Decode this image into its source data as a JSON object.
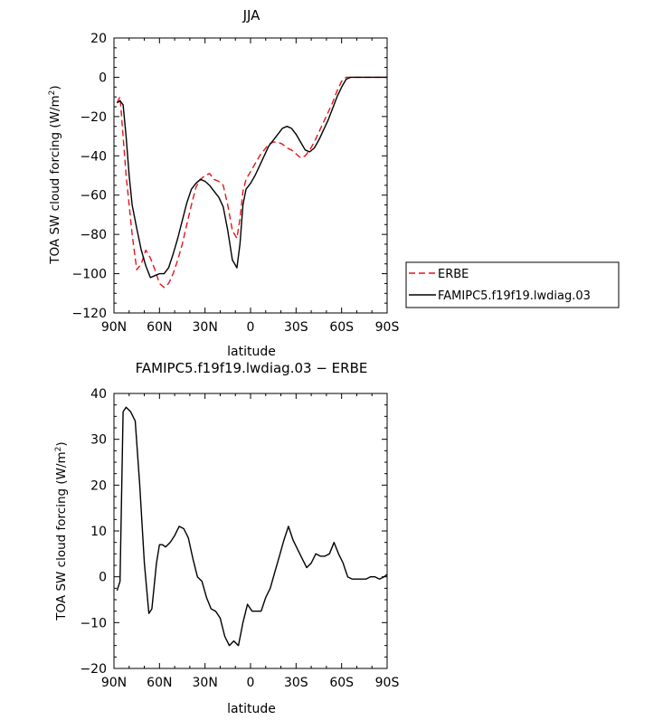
{
  "chart_data": [
    {
      "type": "line",
      "title": "JJA",
      "xlabel": "latitude",
      "ylabel": "TOA SW cloud forcing (W/m",
      "ylabel_sup": "2",
      "ylabel_tail": ")",
      "xlim": [
        -90,
        90
      ],
      "ylim": [
        -120,
        20
      ],
      "xticks": [
        -90,
        -60,
        -30,
        0,
        30,
        60,
        90
      ],
      "xtick_labels": [
        "90N",
        "60N",
        "30N",
        "0",
        "30S",
        "60S",
        "90S"
      ],
      "yticks": [
        -120,
        -100,
        -80,
        -60,
        -40,
        -20,
        0,
        20
      ],
      "ytick_labels": [
        "−120",
        "−100",
        "−80",
        "−60",
        "−40",
        "−20",
        "0",
        "20"
      ],
      "legend": {
        "position": "right",
        "entries": [
          "ERBE",
          "FAMIPC5.f19f19.lwdiag.03"
        ]
      },
      "series": [
        {
          "name": "ERBE",
          "color": "#e8141b",
          "dash": "dashed",
          "x": [
            -88,
            -86,
            -84,
            -82,
            -80,
            -78,
            -75,
            -72,
            -69,
            -66,
            -63,
            -60,
            -57,
            -54,
            -51,
            -48,
            -45,
            -42,
            -39,
            -36,
            -33,
            -30,
            -27,
            -24,
            -21,
            -18,
            -15,
            -12,
            -9,
            -7,
            -5,
            -3,
            0,
            3,
            6,
            9,
            12,
            15,
            18,
            21,
            24,
            27,
            30,
            33,
            36,
            39,
            42,
            45,
            48,
            51,
            54,
            57,
            60,
            63,
            66,
            69,
            72,
            75,
            78,
            81,
            84,
            87,
            90
          ],
          "y": [
            -13,
            -10,
            -30,
            -50,
            -65,
            -80,
            -98,
            -95,
            -88,
            -92,
            -98,
            -105,
            -107,
            -105,
            -100,
            -93,
            -85,
            -75,
            -65,
            -56,
            -52,
            -50,
            -49,
            -52,
            -53,
            -55,
            -65,
            -78,
            -82,
            -72,
            -58,
            -52,
            -48,
            -44,
            -40,
            -37,
            -34,
            -33,
            -33,
            -34,
            -36,
            -37,
            -39,
            -41,
            -40,
            -37,
            -33,
            -28,
            -23,
            -18,
            -13,
            -7,
            -2,
            0,
            0,
            0,
            0,
            0,
            0,
            0,
            0,
            0,
            0
          ]
        },
        {
          "name": "FAMIPC5.f19f19.lwdiag.03",
          "color": "#000000",
          "dash": "solid",
          "x": [
            -88,
            -86,
            -84,
            -82,
            -80,
            -78,
            -75,
            -72,
            -69,
            -66,
            -63,
            -60,
            -57,
            -54,
            -51,
            -48,
            -45,
            -42,
            -39,
            -36,
            -33,
            -30,
            -27,
            -24,
            -21,
            -18,
            -15,
            -12,
            -9,
            -7,
            -5,
            -3,
            0,
            3,
            6,
            9,
            12,
            15,
            18,
            21,
            24,
            27,
            30,
            33,
            36,
            39,
            42,
            45,
            48,
            51,
            54,
            57,
            60,
            63,
            66,
            69,
            72,
            75,
            78,
            81,
            84,
            87,
            90
          ],
          "y": [
            -13,
            -12,
            -14,
            -30,
            -50,
            -65,
            -77,
            -88,
            -96,
            -102,
            -101,
            -100,
            -100,
            -97,
            -90,
            -82,
            -73,
            -64,
            -57,
            -54,
            -52,
            -53,
            -55,
            -58,
            -61,
            -66,
            -78,
            -93,
            -97,
            -85,
            -65,
            -57,
            -54,
            -50,
            -45,
            -40,
            -35,
            -32,
            -29,
            -26,
            -25,
            -26,
            -29,
            -33,
            -37,
            -38,
            -36,
            -32,
            -27,
            -22,
            -16,
            -10,
            -5,
            -1,
            0,
            0,
            0,
            0,
            0,
            0,
            0,
            0,
            0
          ]
        }
      ]
    },
    {
      "type": "line",
      "title": "FAMIPC5.f19f19.lwdiag.03 − ERBE",
      "xlabel": "latitude",
      "ylabel": "TOA SW cloud forcing (W/m",
      "ylabel_sup": "2",
      "ylabel_tail": ")",
      "xlim": [
        -90,
        90
      ],
      "ylim": [
        -20,
        40
      ],
      "xticks": [
        -90,
        -60,
        -30,
        0,
        30,
        60,
        90
      ],
      "xtick_labels": [
        "90N",
        "60N",
        "30N",
        "0",
        "30S",
        "60S",
        "90S"
      ],
      "yticks": [
        -20,
        -10,
        0,
        10,
        20,
        30,
        40
      ],
      "ytick_labels": [
        "−20",
        "−10",
        "0",
        "10",
        "20",
        "30",
        "40"
      ],
      "series": [
        {
          "name": "",
          "color": "#000000",
          "dash": "solid",
          "x": [
            -88,
            -86,
            -84,
            -82,
            -79,
            -76,
            -73,
            -70,
            -67,
            -65,
            -62,
            -60,
            -58,
            -56,
            -53,
            -50,
            -47,
            -44,
            -41,
            -38,
            -35,
            -32,
            -29,
            -26,
            -23,
            -20,
            -17,
            -14,
            -11,
            -8,
            -5,
            -2,
            1,
            4,
            7,
            10,
            13,
            16,
            19,
            22,
            25,
            28,
            31,
            34,
            37,
            40,
            43,
            46,
            49,
            52,
            55,
            58,
            61,
            64,
            67,
            70,
            73,
            76,
            79,
            82,
            85,
            88,
            90
          ],
          "y": [
            -3,
            -1,
            36,
            37,
            36,
            34,
            20,
            3,
            -8,
            -7,
            3,
            7,
            7,
            6.5,
            7.5,
            9,
            11,
            10.5,
            8.5,
            4,
            0,
            -1,
            -4.5,
            -7,
            -7.5,
            -9,
            -13,
            -15,
            -14,
            -15,
            -10,
            -6,
            -7.5,
            -7.5,
            -7.5,
            -4.5,
            -2.5,
            1,
            4.5,
            8,
            11,
            8,
            6,
            4,
            2,
            3,
            5,
            4.5,
            4.5,
            5,
            7.5,
            5,
            3,
            0,
            -0.5,
            -0.5,
            -0.5,
            -0.5,
            0,
            0,
            -0.5,
            0,
            0.5
          ]
        }
      ]
    }
  ]
}
